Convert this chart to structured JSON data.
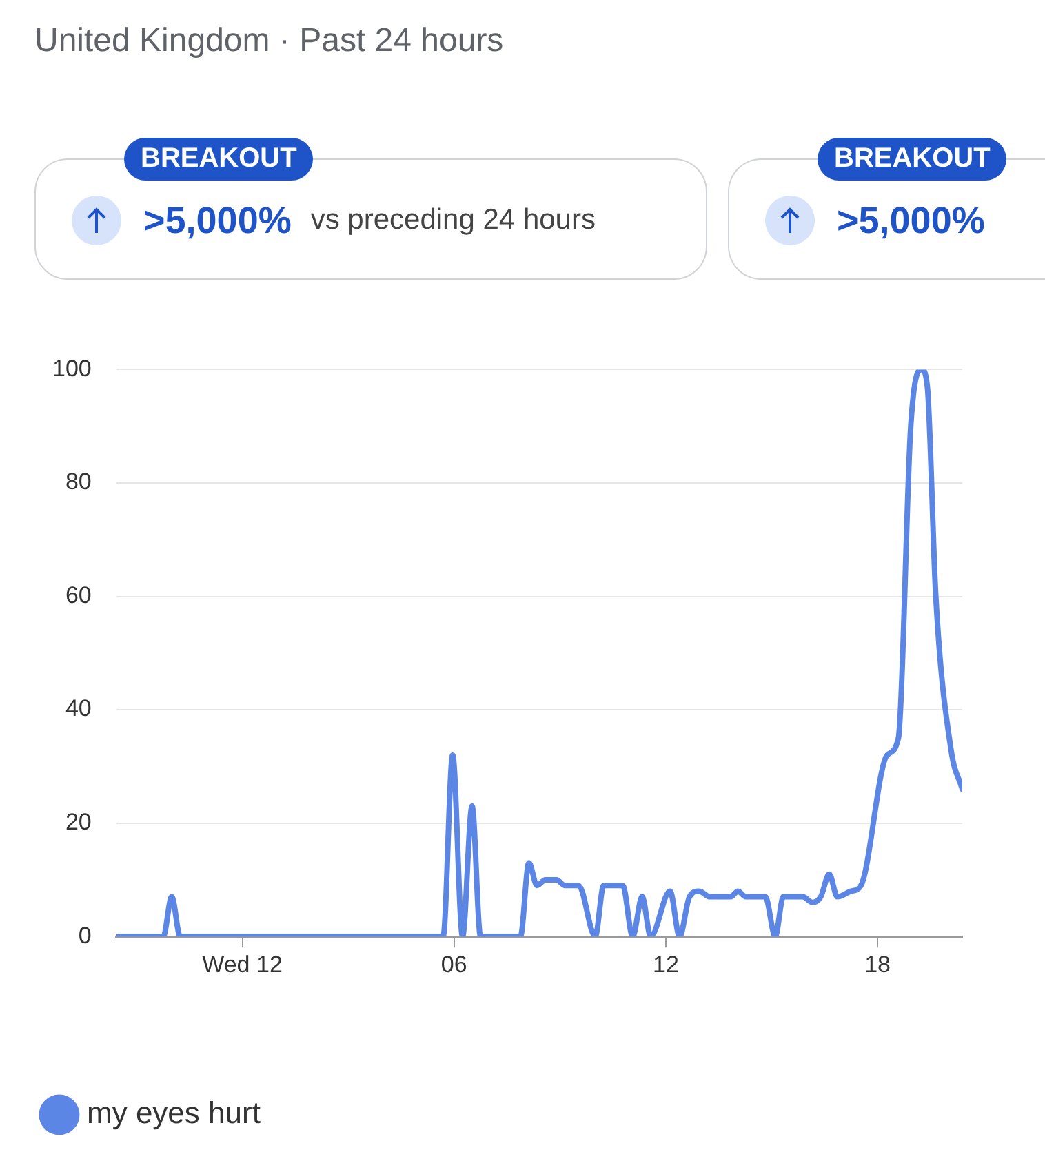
{
  "chart_data": {
    "type": "line",
    "title": "United Kingdom · Past 24 hours",
    "annotations": [
      "BREAKOUT",
      ">5,000%",
      "vs preceding 24 hours",
      "BREAKOUT",
      ">5,000%"
    ],
    "x": [
      -3.57,
      -2.24,
      -2.0,
      -1.76,
      5.69,
      5.96,
      6.24,
      6.51,
      6.75,
      7.88,
      8.12,
      8.35,
      8.59,
      8.9,
      9.14,
      9.53,
      10.0,
      10.24,
      10.78,
      11.06,
      11.33,
      11.57,
      12.12,
      12.39,
      12.67,
      12.94,
      13.25,
      13.84,
      14.04,
      14.27,
      14.82,
      15.1,
      15.33,
      15.88,
      16.16,
      16.39,
      16.63,
      16.86,
      17.25,
      17.53,
      18.27,
      18.59,
      18.94,
      19.25,
      19.41,
      19.65,
      20.08,
      20.4
    ],
    "series": [
      {
        "name": "my eyes hurt",
        "color": "#5b86e5",
        "values": [
          0,
          0,
          7,
          0,
          0,
          32,
          0,
          23,
          0,
          0,
          13,
          9,
          10,
          10,
          9,
          9,
          0,
          9,
          9,
          0,
          7,
          0,
          8,
          0,
          7,
          8,
          7,
          7,
          8,
          7,
          7,
          0,
          7,
          7,
          6,
          7,
          11,
          7,
          8,
          9,
          32,
          35,
          90,
          100,
          97,
          60,
          33,
          26
        ]
      }
    ],
    "xlim": [
      -3.57,
      20.4
    ],
    "xticks": [
      {
        "value": 0,
        "label": "Wed 12"
      },
      {
        "value": 6,
        "label": "06"
      },
      {
        "value": 12,
        "label": "12"
      },
      {
        "value": 18,
        "label": "18"
      }
    ],
    "ylim": [
      0,
      100
    ],
    "yticks": [
      0,
      20,
      40,
      60,
      80,
      100
    ],
    "grid": "y",
    "legend": "bottom",
    "line_style": "solid"
  }
}
